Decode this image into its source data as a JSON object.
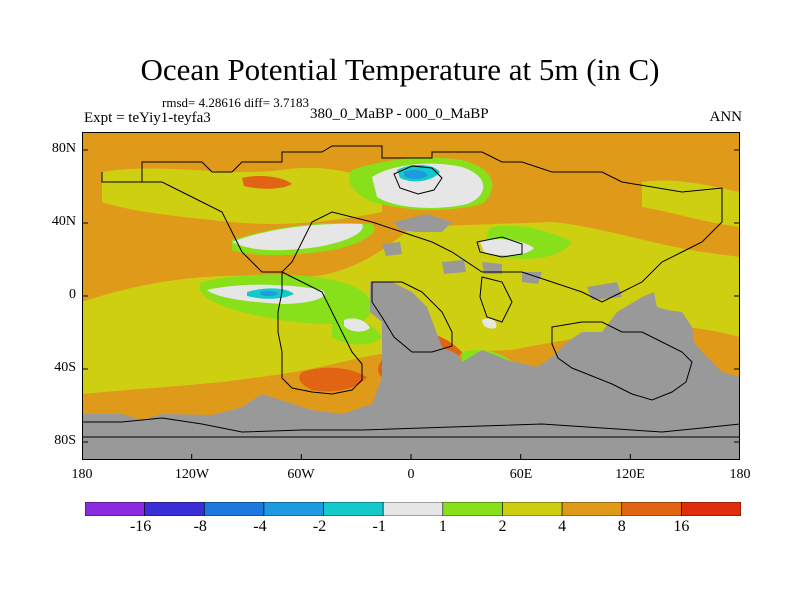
{
  "title": "Ocean Potential Temperature at 5m (in C)",
  "stats": "rmsd= 4.28616 diff= 3.7183",
  "expt": "Expt = teYiy1-teyfa3",
  "subtitle": "380_0_MaBP - 000_0_MaBP",
  "season": "ANN",
  "map": {
    "lat_labels": [
      "80N",
      "40N",
      "0",
      "40S",
      "80S"
    ],
    "lon_labels": [
      "180",
      "120W",
      "60W",
      "0",
      "60E",
      "120E",
      "180"
    ],
    "colors": {
      "land_mask": "#999999",
      "bin_neg1_1": "#e6e6e6",
      "bin_1_2": "#87e01a",
      "bin_2_4": "#cfcf12",
      "bin_4_8": "#e09a1a",
      "bin_8_16": "#e06414",
      "bin_neg2_neg1": "#13c9c9",
      "bin_neg4_neg2": "#1e9be0"
    }
  },
  "colorbar": {
    "labels": [
      "-16",
      "-8",
      "-4",
      "-2",
      "-1",
      "1",
      "2",
      "4",
      "8",
      "16"
    ],
    "colors": [
      "#8a2be2",
      "#3a2fd6",
      "#1e78e0",
      "#1e9be0",
      "#13c9c9",
      "#e6e6e6",
      "#87e01a",
      "#cfcf12",
      "#e09a1a",
      "#e06414",
      "#e02d0c"
    ]
  }
}
